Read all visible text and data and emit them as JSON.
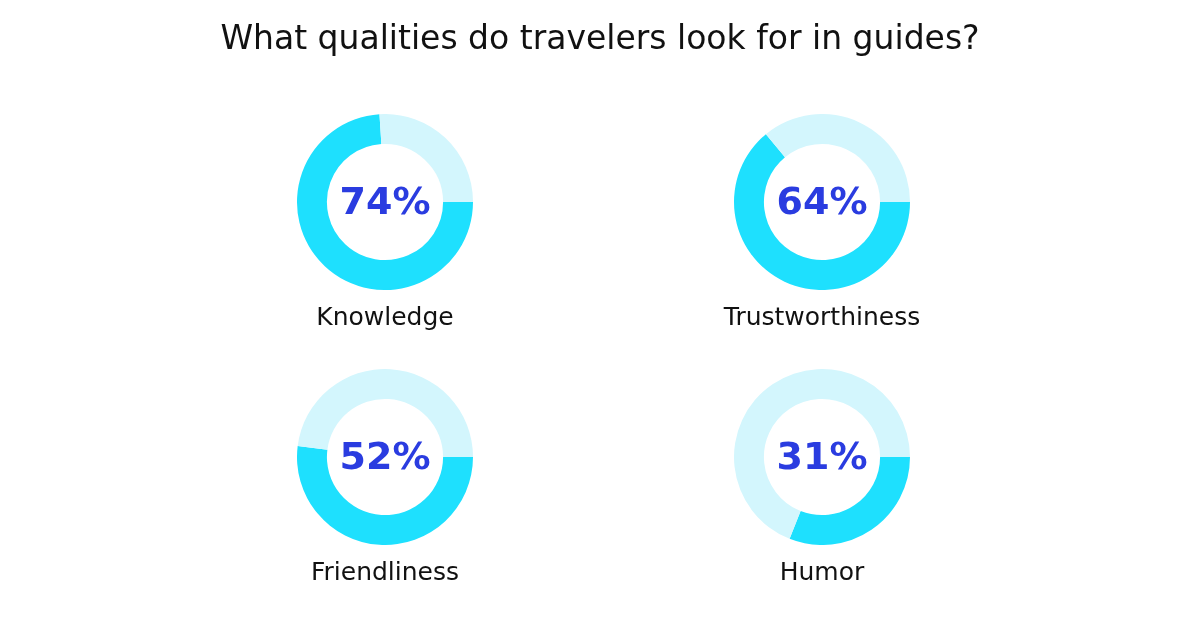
{
  "chart_data": [
    {
      "type": "other",
      "title": "What qualities do travelers look for in guides?"
    },
    {
      "type": "donut",
      "title": "Knowledge",
      "categories": [
        null,
        null
      ],
      "values": [
        74,
        26
      ],
      "colors": [
        "#1ee0fe",
        "#d3f6fd"
      ],
      "annotations": [
        "74%"
      ]
    },
    {
      "type": "donut",
      "title": "Trustworthiness",
      "categories": [
        null,
        null
      ],
      "values": [
        64,
        36
      ],
      "colors": [
        "#1ee0fe",
        "#d3f6fd"
      ],
      "annotations": [
        "64%"
      ]
    },
    {
      "type": "donut",
      "title": "Friendliness",
      "categories": [
        null,
        null
      ],
      "values": [
        52,
        48
      ],
      "colors": [
        "#1ee0fe",
        "#d3f6fd"
      ],
      "annotations": [
        "52%"
      ]
    },
    {
      "type": "donut",
      "title": "Humor",
      "categories": [
        null,
        null
      ],
      "values": [
        31,
        69
      ],
      "colors": [
        "#1ee0fe",
        "#d3f6fd"
      ],
      "annotations": [
        "31%"
      ]
    }
  ]
}
